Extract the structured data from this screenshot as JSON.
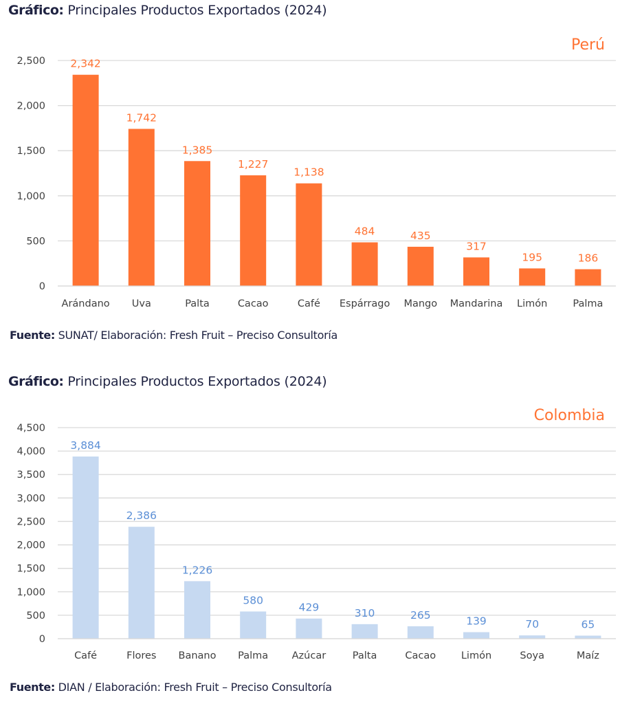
{
  "charts": [
    {
      "caption_label": "Gráfico:",
      "caption_text": " Principales Productos Exportados (2024)",
      "source_label": "Fuente:",
      "source_text": " SUNAT/ Elaboración: Fresh Fruit – Preciso Consultoría"
    },
    {
      "caption_label": "Gráfico:",
      "caption_text": " Principales Productos Exportados (2024)",
      "source_label": "Fuente:",
      "source_text": "  DIAN / Elaboración: Fresh Fruit – Preciso Consultoría"
    }
  ],
  "chart_data": [
    {
      "type": "bar",
      "title": "Principales Productos Exportados (2024)",
      "annotation": "Perú",
      "xlabel": "",
      "ylabel": "",
      "ylim": [
        0,
        2500
      ],
      "yticks": [
        0,
        500,
        1000,
        1500,
        2000,
        2500
      ],
      "ytick_labels": [
        "0",
        "500",
        "1,000",
        "1,500",
        "2,000",
        "2,500"
      ],
      "grid": true,
      "categories": [
        "Arándano",
        "Uva",
        "Palta",
        "Cacao",
        "Café",
        "Espárrago",
        "Mango",
        "Mandarina",
        "Limón",
        "Palma"
      ],
      "values": [
        2342,
        1742,
        1385,
        1227,
        1138,
        484,
        435,
        317,
        195,
        186
      ],
      "value_labels": [
        "2,342",
        "1,742",
        "1,385",
        "1,227",
        "1,138",
        "484",
        "435",
        "317",
        "195",
        "186"
      ],
      "bar_color": "#ff7333",
      "label_color": "#ff7333",
      "annotation_color": "#ff7333"
    },
    {
      "type": "bar",
      "title": "Principales Productos Exportados (2024)",
      "annotation": "Colombia",
      "xlabel": "",
      "ylabel": "",
      "ylim": [
        0,
        4500
      ],
      "yticks": [
        0,
        500,
        1000,
        1500,
        2000,
        2500,
        3000,
        3500,
        4000,
        4500
      ],
      "ytick_labels": [
        "0",
        "500",
        "1,000",
        "1,500",
        "2,000",
        "2,500",
        "3,000",
        "3,500",
        "4,000",
        "4,500"
      ],
      "grid": true,
      "categories": [
        "Café",
        "Flores",
        "Banano",
        "Palma",
        "Azúcar",
        "Palta",
        "Cacao",
        "Limón",
        "Soya",
        "Maíz"
      ],
      "values": [
        3884,
        2386,
        1226,
        580,
        429,
        310,
        265,
        139,
        70,
        65
      ],
      "value_labels": [
        "3,884",
        "2,386",
        "1,226",
        "580",
        "429",
        "310",
        "265",
        "139",
        "70",
        "65"
      ],
      "bar_color": "#c6d9f1",
      "label_color": "#5b8fd6",
      "annotation_color": "#ff7333"
    }
  ]
}
